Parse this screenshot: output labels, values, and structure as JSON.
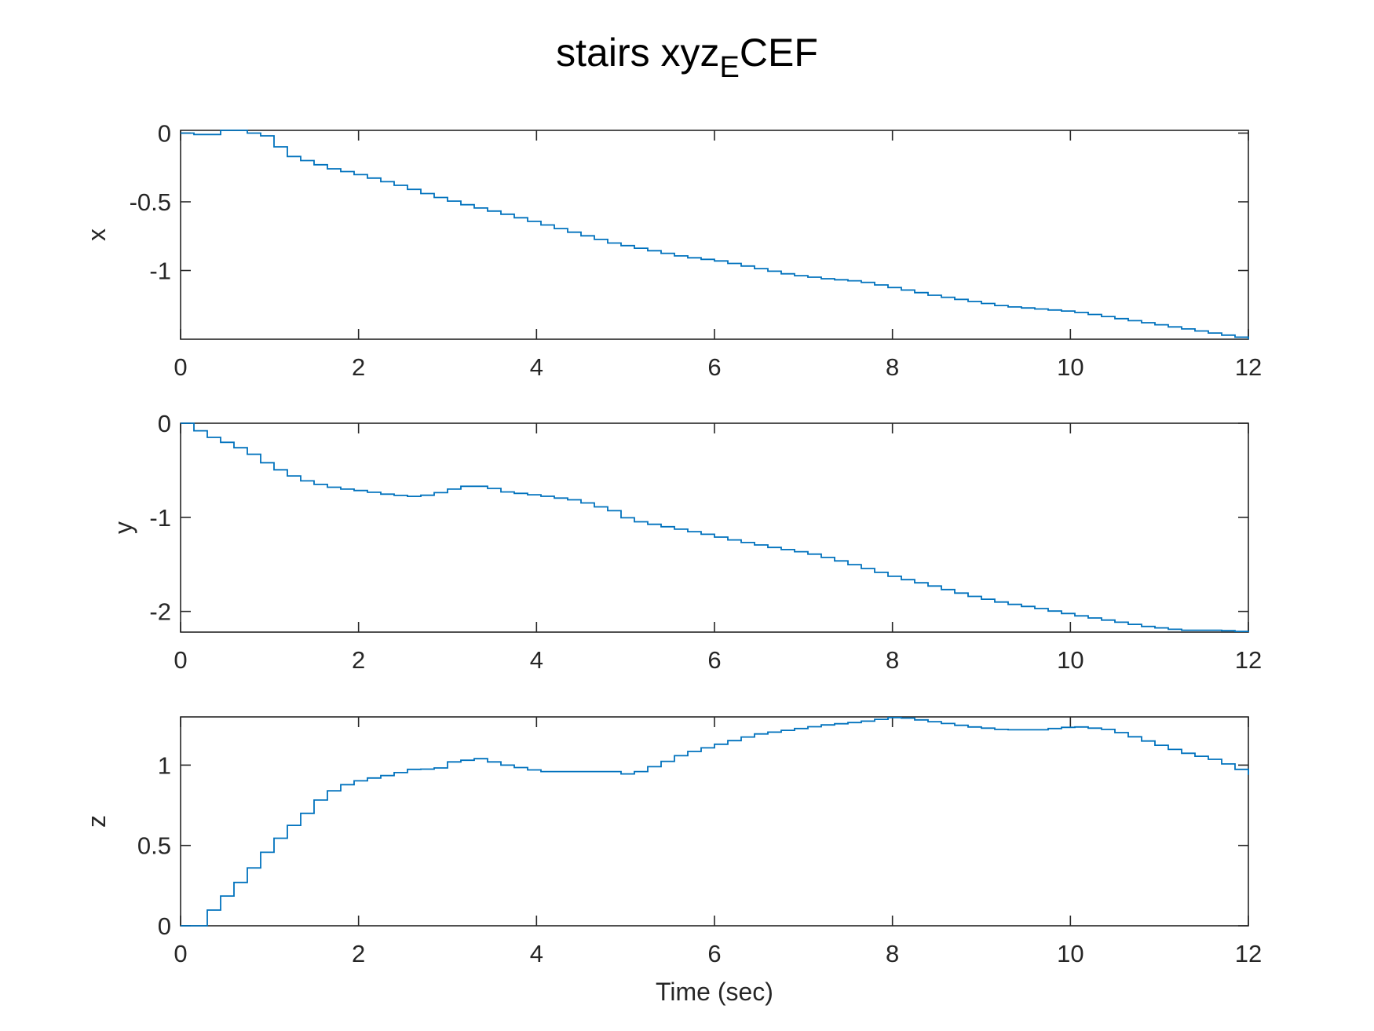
{
  "chart_data": [
    {
      "type": "line",
      "title": "stairs xyz",
      "title_subscript": "E",
      "title_suffix": "CEF",
      "ylabel": "x",
      "xlabel": "",
      "xlim": [
        0,
        12
      ],
      "ylim": [
        -1.5,
        0.02
      ],
      "xticks": [
        "0",
        "2",
        "4",
        "6",
        "8",
        "10",
        "12"
      ],
      "yticks": [
        {
          "value": 0,
          "label": "0"
        },
        {
          "value": -0.5,
          "label": "-0.5"
        },
        {
          "value": -1,
          "label": "-1"
        }
      ],
      "grid": false,
      "series": [
        {
          "color": "#0072BD",
          "step": 0.15,
          "x": [
            0,
            0.15,
            0.3,
            0.45,
            0.6,
            0.75,
            0.9,
            1.05,
            1.2,
            1.35,
            1.5,
            1.65,
            1.8,
            2.0,
            2.4,
            2.8,
            3.2,
            3.6,
            4.0,
            4.4,
            4.8,
            5.2,
            5.6,
            6.0,
            6.4,
            6.8,
            7.2,
            7.6,
            8.0,
            8.4,
            8.8,
            9.2,
            9.6,
            10.0,
            10.4,
            10.8,
            11.2,
            11.6,
            12.0
          ],
          "y": [
            0.0,
            -0.01,
            -0.01,
            0.02,
            0.02,
            0.0,
            -0.02,
            -0.1,
            -0.17,
            -0.2,
            -0.23,
            -0.26,
            -0.28,
            -0.31,
            -0.38,
            -0.46,
            -0.53,
            -0.59,
            -0.66,
            -0.73,
            -0.8,
            -0.85,
            -0.9,
            -0.93,
            -0.98,
            -1.03,
            -1.06,
            -1.08,
            -1.13,
            -1.18,
            -1.22,
            -1.26,
            -1.28,
            -1.3,
            -1.34,
            -1.38,
            -1.42,
            -1.46,
            -1.5
          ]
        }
      ]
    },
    {
      "type": "line",
      "ylabel": "y",
      "xlabel": "",
      "xlim": [
        0,
        12
      ],
      "ylim": [
        -2.22,
        0
      ],
      "xticks": [
        "0",
        "2",
        "4",
        "6",
        "8",
        "10",
        "12"
      ],
      "yticks": [
        {
          "value": 0,
          "label": "0"
        },
        {
          "value": -1,
          "label": "-1"
        },
        {
          "value": -2,
          "label": "-2"
        }
      ],
      "grid": false,
      "series": [
        {
          "color": "#0072BD",
          "step": 0.15,
          "x": [
            0,
            0.15,
            0.3,
            0.5,
            0.7,
            0.9,
            1.1,
            1.3,
            1.5,
            1.7,
            2.0,
            2.3,
            2.6,
            2.8,
            3.0,
            3.2,
            3.4,
            3.6,
            4.0,
            4.4,
            4.8,
            5.0,
            5.4,
            5.8,
            6.2,
            6.6,
            7.0,
            7.3,
            7.6,
            8.0,
            8.4,
            8.8,
            9.2,
            9.6,
            10.0,
            10.4,
            10.8,
            11.2,
            11.6,
            12.0
          ],
          "y": [
            0.0,
            -0.08,
            -0.15,
            -0.22,
            -0.3,
            -0.42,
            -0.52,
            -0.6,
            -0.65,
            -0.69,
            -0.72,
            -0.76,
            -0.78,
            -0.75,
            -0.7,
            -0.66,
            -0.68,
            -0.73,
            -0.77,
            -0.82,
            -0.93,
            -1.03,
            -1.1,
            -1.17,
            -1.25,
            -1.32,
            -1.38,
            -1.45,
            -1.53,
            -1.64,
            -1.73,
            -1.83,
            -1.91,
            -1.97,
            -2.04,
            -2.1,
            -2.16,
            -2.2,
            -2.2,
            -2.22
          ]
        }
      ]
    },
    {
      "type": "line",
      "ylabel": "z",
      "xlabel": "Time (sec)",
      "xlim": [
        0,
        12
      ],
      "ylim": [
        0,
        1.3
      ],
      "xticks": [
        "0",
        "2",
        "4",
        "6",
        "8",
        "10",
        "12"
      ],
      "yticks": [
        {
          "value": 1,
          "label": "1"
        },
        {
          "value": 0.5,
          "label": "0.5"
        },
        {
          "value": 0,
          "label": "0"
        }
      ],
      "grid": false,
      "series": [
        {
          "color": "#0072BD",
          "step": 0.15,
          "x": [
            0,
            0.15,
            0.35,
            0.55,
            0.75,
            0.95,
            1.15,
            1.35,
            1.55,
            1.75,
            2.0,
            2.3,
            2.6,
            2.8,
            3.0,
            3.3,
            3.6,
            4.0,
            4.4,
            4.8,
            5.0,
            5.3,
            5.6,
            6.0,
            6.4,
            6.8,
            7.2,
            7.6,
            8.0,
            8.4,
            8.8,
            9.2,
            9.6,
            10.0,
            10.4,
            10.8,
            11.2,
            11.6,
            12.0
          ],
          "y": [
            0.0,
            0.0,
            0.13,
            0.24,
            0.36,
            0.49,
            0.6,
            0.7,
            0.81,
            0.87,
            0.91,
            0.94,
            0.98,
            0.97,
            1.02,
            1.04,
            1.0,
            0.96,
            0.96,
            0.96,
            0.94,
            1.0,
            1.07,
            1.13,
            1.19,
            1.22,
            1.25,
            1.27,
            1.3,
            1.27,
            1.24,
            1.22,
            1.22,
            1.24,
            1.22,
            1.15,
            1.08,
            1.03,
            0.94
          ]
        }
      ]
    }
  ]
}
